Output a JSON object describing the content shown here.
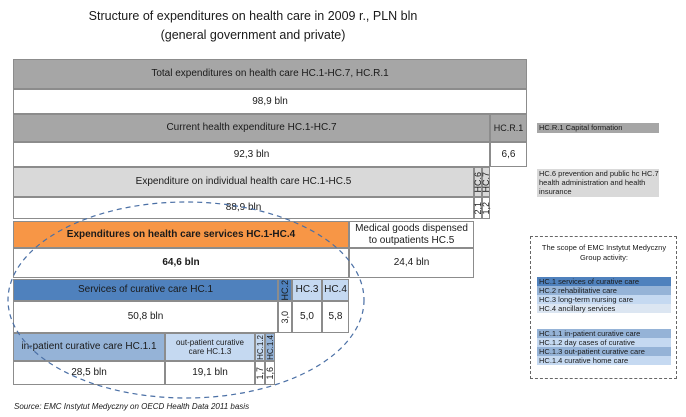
{
  "title": {
    "line1": "Structure of expenditures on health care in 2009 r., PLN bln",
    "line2": "(general government and private)"
  },
  "blocks": {
    "total": {
      "label": "Total expenditures on health care HC.1-HC.7, HC.R.1",
      "value": "98,9 bln"
    },
    "current": {
      "label": "Current health expenditure HC.1-HC.7",
      "value": "92,3 bln"
    },
    "hcr1": {
      "label": "HC.R.1",
      "value": "6,6"
    },
    "individual": {
      "label": "Expenditure on individual health care HC.1-HC.5",
      "value": "88,9 bln"
    },
    "individual_side_top": "HC.6",
    "individual_side_top2": "HC.7",
    "individual_side_bottom": "2,1",
    "individual_side_bottom2": "1,2",
    "services": {
      "label": "Expenditures on health care services HC.1-HC.4",
      "value": "64,6 bln"
    },
    "medical_goods": {
      "label": "Medical goods dispensed to outpatients HC.5",
      "value": "24,4 bln"
    },
    "curative": {
      "label": "Services of curative care HC.1",
      "value": "50,8 bln"
    },
    "hc2": {
      "label": "HC.2",
      "value": "3,0"
    },
    "hc3": {
      "label": "HC.3",
      "value": "5,0"
    },
    "hc4": {
      "label": "HC.4",
      "value": "5,8"
    },
    "inpatient": {
      "label": "in-patient curative care HC.1.1",
      "value": "28,5 bln"
    },
    "outpatient": {
      "label": "out-patient curative care HC.1.3",
      "value": "19,1 bln"
    },
    "hc12": {
      "label": "HC.1.2",
      "value": "1,7"
    },
    "hc14": {
      "label": "HC.1.4",
      "value": "1,6"
    }
  },
  "legend_top": {
    "hcr1": "HC.R.1 Capital formation",
    "hc67": "HC.6 prevention and public hc HC.7 health administration and health insurance"
  },
  "legend_box": {
    "title": "The scope of EMC Instytut Medyczny Group activity:",
    "items_a": [
      "HC.1 services of curative care",
      "HC.2 rehabilitative care",
      "HC.3 long-term nursing care",
      "HC.4 ancillary services"
    ],
    "items_b": [
      "HC.1.1 in-patient curative care",
      "HC.1.2 day cases of curative",
      "HC.1.3 out-patient curative care",
      "HC.1.4 curative home care"
    ]
  },
  "source": "Source: EMC Instytut Medyczny on OECD Health Data 2011 basis",
  "colors": {
    "grey": "#a6a6a6",
    "light_grey": "#d9d9d9",
    "orange": "#f79646",
    "blue_dark": "#4f81bd",
    "blue_mid": "#95b3d7",
    "blue_light": "#c5d9f1"
  }
}
